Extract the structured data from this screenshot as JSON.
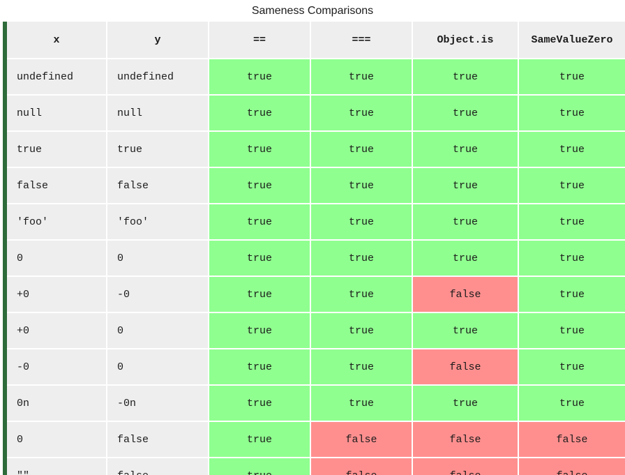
{
  "caption": "Sameness Comparisons",
  "colors": {
    "true_bg": "#8fff8f",
    "false_bg": "#ff8f8f",
    "header_bg": "#eeeeee",
    "accent_bar": "#2e6b3a"
  },
  "columns": [
    "x",
    "y",
    "==",
    "===",
    "Object.is",
    "SameValueZero"
  ],
  "rows": [
    [
      "undefined",
      "undefined",
      "true",
      "true",
      "true",
      "true"
    ],
    [
      "null",
      "null",
      "true",
      "true",
      "true",
      "true"
    ],
    [
      "true",
      "true",
      "true",
      "true",
      "true",
      "true"
    ],
    [
      "false",
      "false",
      "true",
      "true",
      "true",
      "true"
    ],
    [
      "'foo'",
      "'foo'",
      "true",
      "true",
      "true",
      "true"
    ],
    [
      "0",
      "0",
      "true",
      "true",
      "true",
      "true"
    ],
    [
      "+0",
      "-0",
      "true",
      "true",
      "false",
      "true"
    ],
    [
      "+0",
      "0",
      "true",
      "true",
      "true",
      "true"
    ],
    [
      "-0",
      "0",
      "true",
      "true",
      "false",
      "true"
    ],
    [
      "0n",
      "-0n",
      "true",
      "true",
      "true",
      "true"
    ],
    [
      "0",
      "false",
      "true",
      "false",
      "false",
      "false"
    ],
    [
      "\"\"",
      "false",
      "true",
      "false",
      "false",
      "false"
    ]
  ]
}
